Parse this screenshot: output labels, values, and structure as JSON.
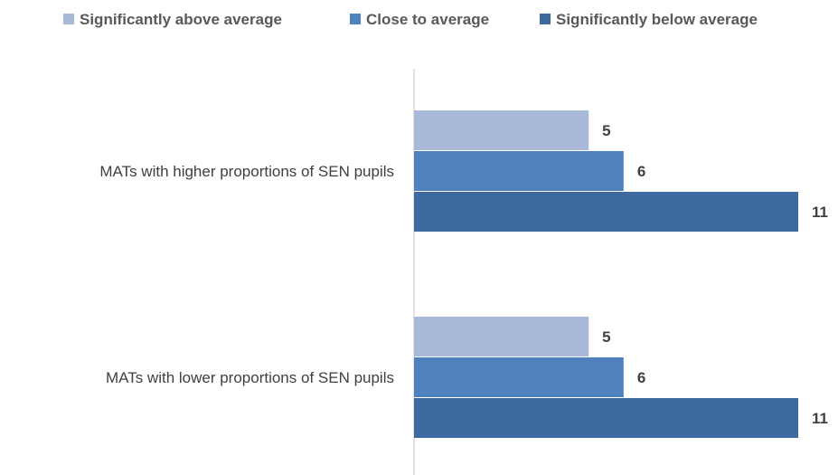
{
  "chart_data": {
    "type": "bar",
    "orientation": "horizontal",
    "categories": [
      "MATs with higher proportions of SEN pupils",
      "MATs with lower proportions of SEN pupils"
    ],
    "series": [
      {
        "name": "Significantly above average",
        "values": [
          5,
          5
        ],
        "color": "#a9b9d9"
      },
      {
        "name": "Close to average",
        "values": [
          6,
          6
        ],
        "color": "#4f81bd"
      },
      {
        "name": "Significantly below average",
        "values": [
          11,
          11
        ],
        "color": "#3f6a9f"
      }
    ],
    "xlim": [
      0,
      11
    ],
    "grid": false,
    "legend_position": "top",
    "data_labels": true
  }
}
